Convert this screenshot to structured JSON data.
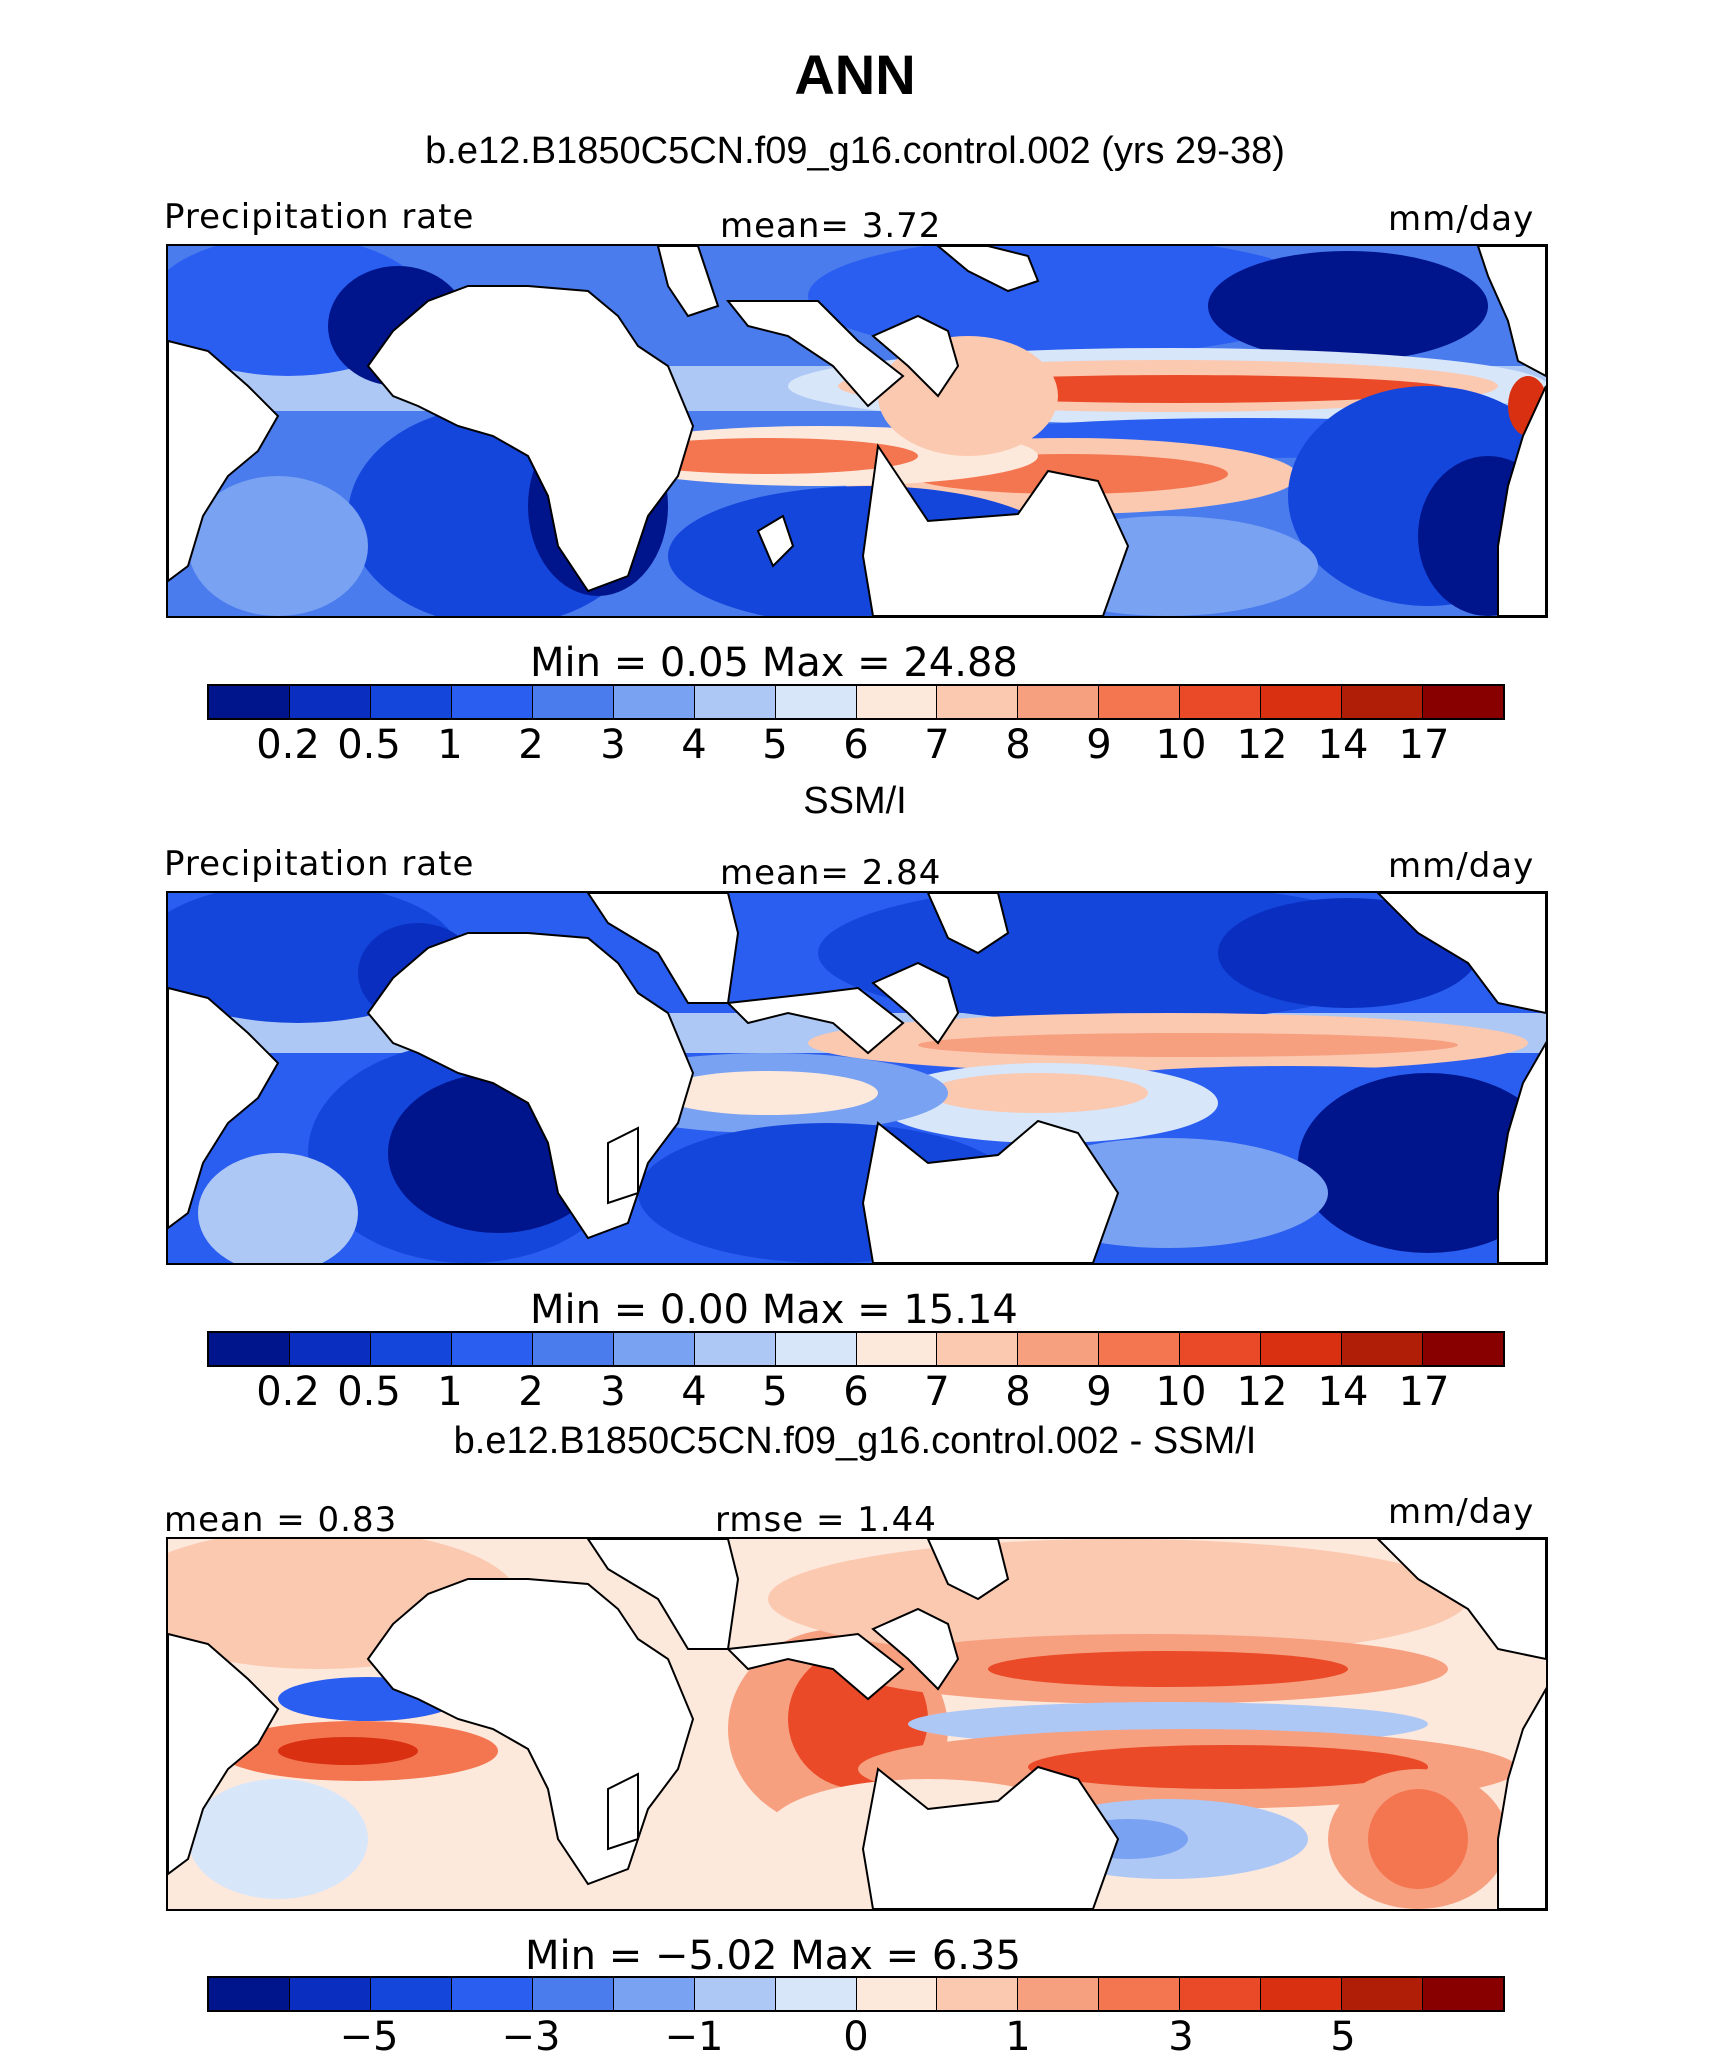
{
  "title": "ANN",
  "panels": [
    {
      "heading": "b.e12.B1850C5CN.f09_g16.control.002 (yrs 29-38)",
      "left_label": "Precipitation rate",
      "center_label": "mean=   3.72",
      "right_label": "mm/day",
      "minmax_text": "Min  =    0.05  Max  =   24.88"
    },
    {
      "heading": "SSM/I",
      "left_label": "Precipitation rate",
      "center_label": "mean=   2.84",
      "right_label": "mm/day",
      "minmax_text": "Min  =    0.00  Max  =   15.14"
    },
    {
      "heading": "b.e12.B1850C5CN.f09_g16.control.002 - SSM/I",
      "left_label": "mean  =    0.83",
      "center_label": "rmse  =    1.44",
      "right_label": "mm/day",
      "minmax_text": "Min  =   −5.02  Max  =    6.35"
    }
  ],
  "colorbar": {
    "colors": [
      "#00148c",
      "#0a2fc0",
      "#1446dc",
      "#2a5ef0",
      "#4a7cee",
      "#7aa2f2",
      "#aec8f6",
      "#d8e6fa",
      "#fde8dc",
      "#fbc8b0",
      "#f7a080",
      "#f37650",
      "#ea4a28",
      "#d83010",
      "#b01e08",
      "#880000"
    ],
    "precip_ticks": [
      "0.2",
      "0.5",
      "1",
      "2",
      "3",
      "4",
      "5",
      "6",
      "7",
      "8",
      "9",
      "10",
      "12",
      "14",
      "17"
    ],
    "diff_ticks": [
      "−5",
      "−3",
      "−1",
      "0",
      "1",
      "3",
      "5"
    ]
  }
}
